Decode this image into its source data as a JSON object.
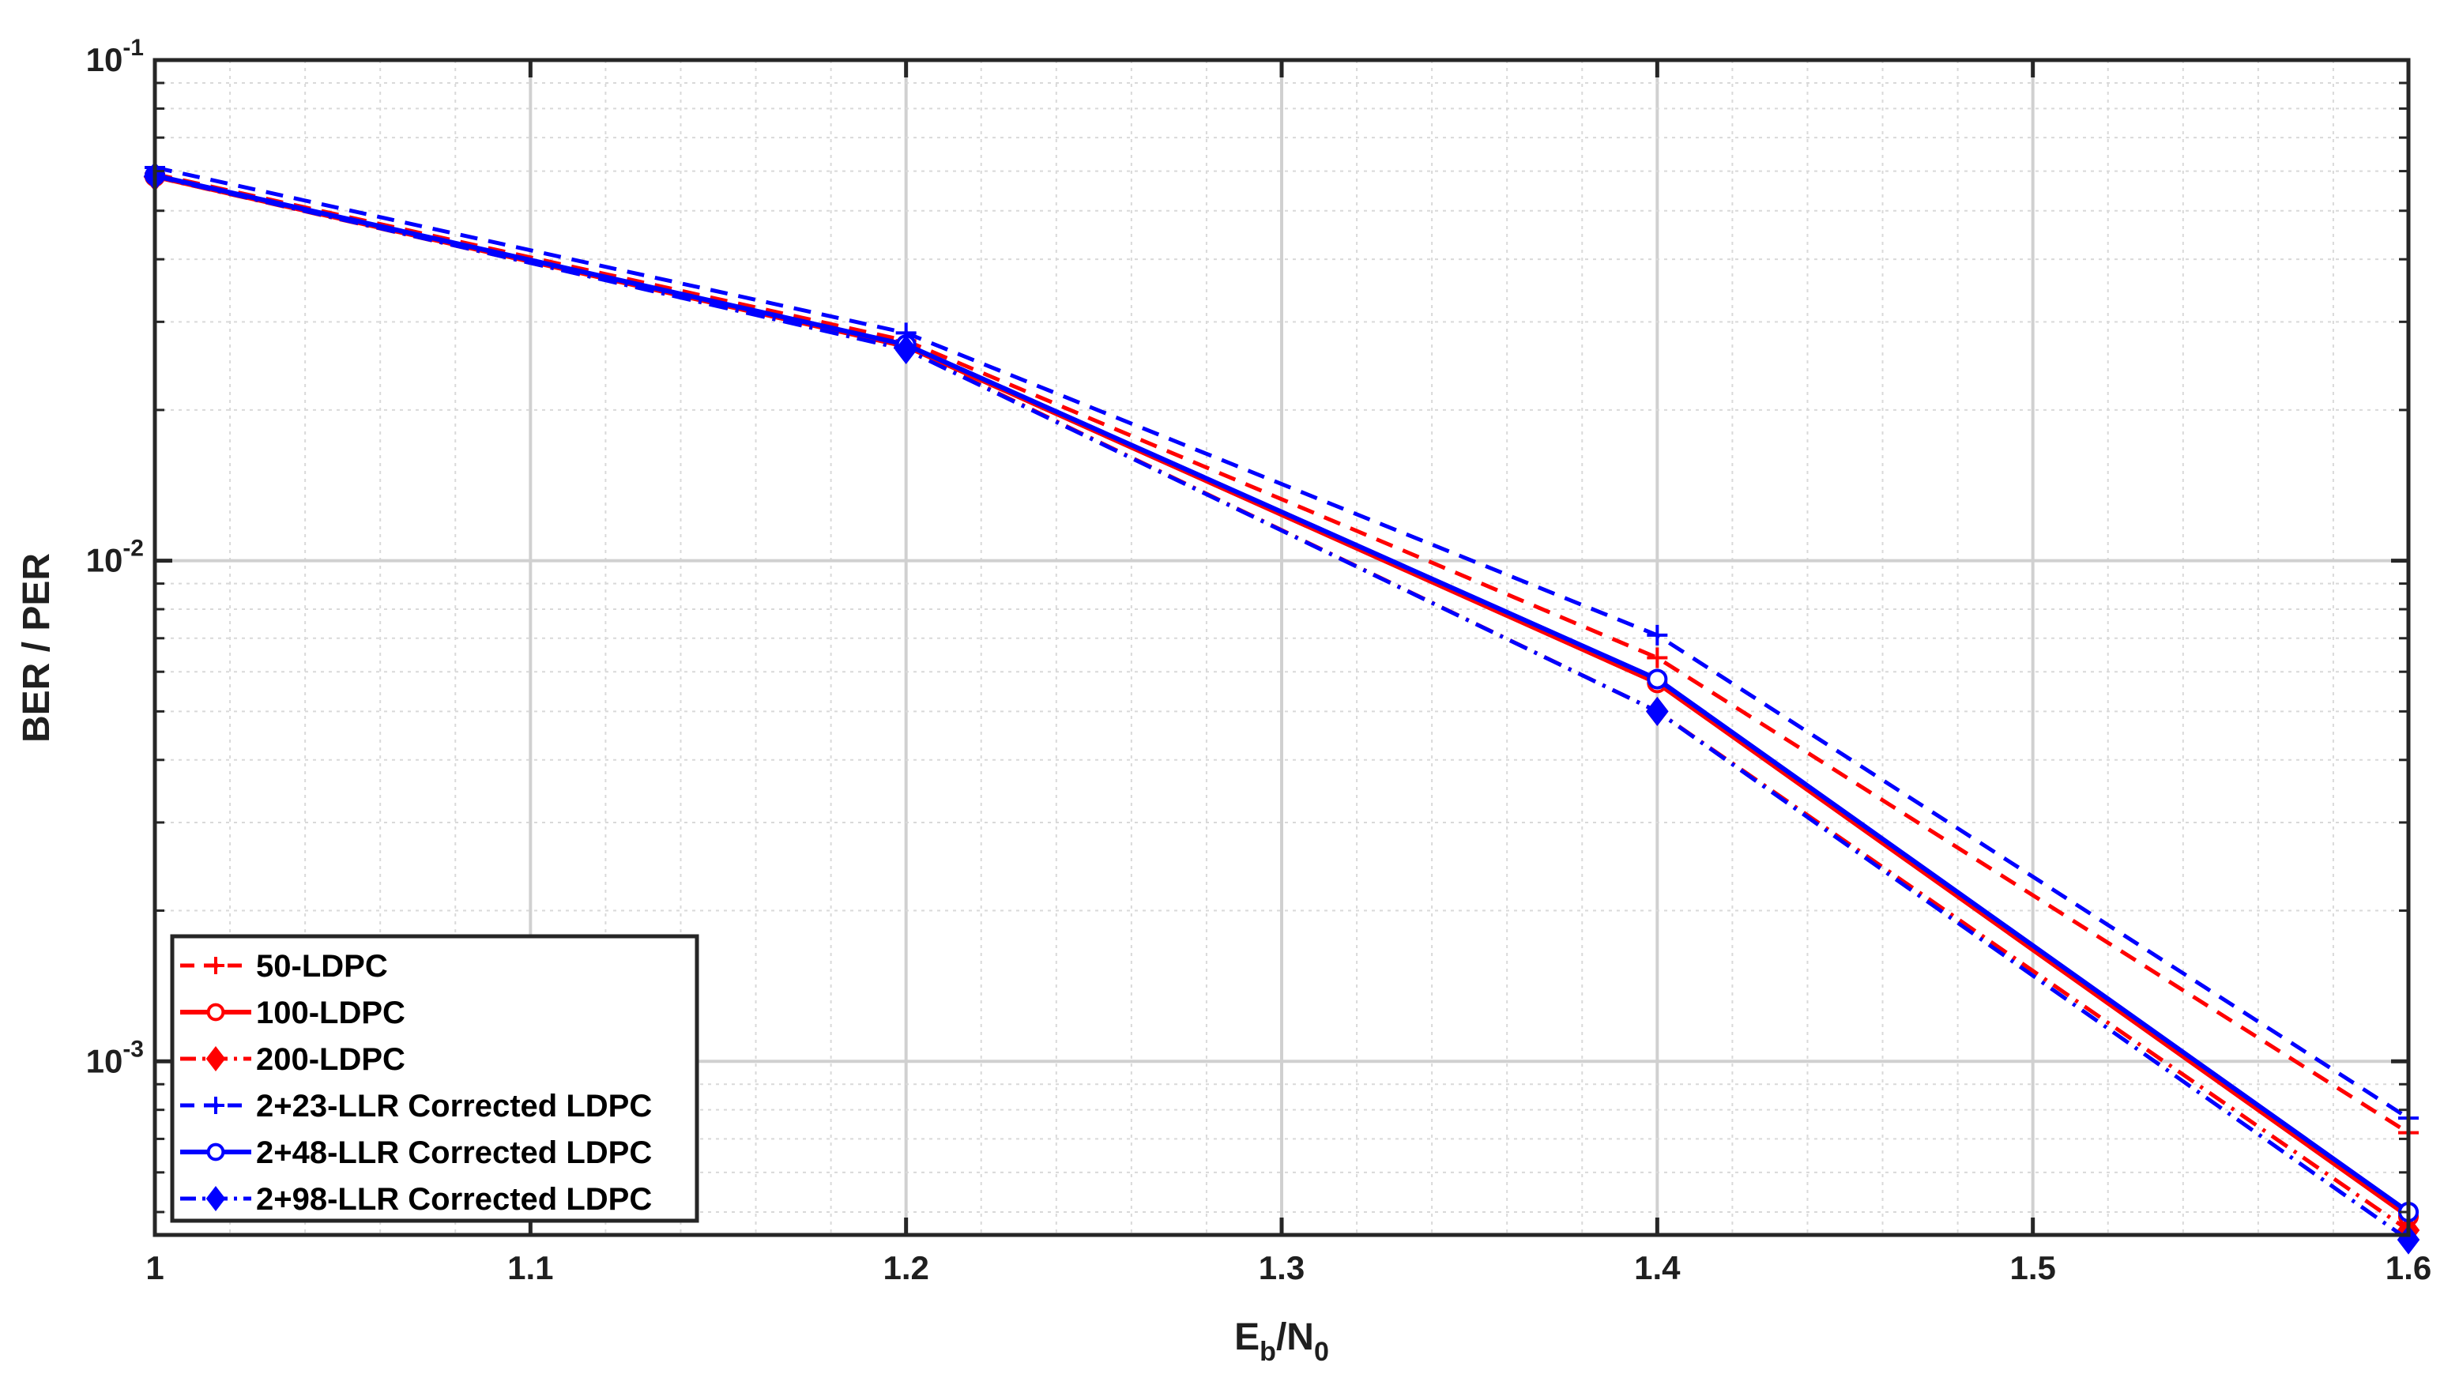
{
  "chart_data": {
    "type": "line",
    "title": "",
    "xlabel": "E_b/N_0",
    "xlabel_parts": {
      "main1": "E",
      "sub1": "b",
      "slash": "/N",
      "sub2": "0"
    },
    "ylabel": "BER / PER",
    "xlim": [
      1,
      1.6
    ],
    "ylim": [
      0.00045,
      0.1
    ],
    "yscale": "log",
    "grid": true,
    "minor_grid": true,
    "legend_position": "bottom-left",
    "x_ticks": [
      {
        "value": 1,
        "label": "1"
      },
      {
        "value": 1.1,
        "label": "1.1"
      },
      {
        "value": 1.2,
        "label": "1.2"
      },
      {
        "value": 1.3,
        "label": "1.3"
      },
      {
        "value": 1.4,
        "label": "1.4"
      },
      {
        "value": 1.5,
        "label": "1.5"
      },
      {
        "value": 1.6,
        "label": "1.6"
      }
    ],
    "y_ticks": [
      {
        "value": 0.1,
        "base": "10",
        "exp": "-1"
      },
      {
        "value": 0.01,
        "base": "10",
        "exp": "-2"
      },
      {
        "value": 0.001,
        "base": "10",
        "exp": "-3"
      }
    ],
    "x": [
      1,
      1.2,
      1.4,
      1.6
    ],
    "series": [
      {
        "name": "50-LDPC",
        "color": "#ff0000",
        "line": "dashed",
        "marker": "plus",
        "values": [
          0.0592,
          0.0275,
          0.0064,
          0.00072
        ]
      },
      {
        "name": "100-LDPC",
        "color": "#ff0000",
        "line": "solid",
        "marker": "circle",
        "values": [
          0.0585,
          0.0268,
          0.0057,
          0.00049
        ]
      },
      {
        "name": "200-LDPC",
        "color": "#ff0000",
        "line": "dashdot",
        "marker": "diamond",
        "values": [
          0.0584,
          0.0265,
          0.005,
          0.00046
        ]
      },
      {
        "name": "2+23-LLR Corrected LDPC",
        "color": "#0000ff",
        "line": "dashed",
        "marker": "plus",
        "values": [
          0.061,
          0.0285,
          0.0071,
          0.00077
        ]
      },
      {
        "name": "2+48-LLR Corrected LDPC",
        "color": "#0000ff",
        "line": "solid",
        "marker": "circle",
        "values": [
          0.0588,
          0.027,
          0.0058,
          0.0005
        ]
      },
      {
        "name": "2+98-LLR Corrected LDPC",
        "color": "#0000ff",
        "line": "dashdot",
        "marker": "diamond",
        "values": [
          0.0586,
          0.0264,
          0.005,
          0.00044
        ]
      }
    ]
  }
}
